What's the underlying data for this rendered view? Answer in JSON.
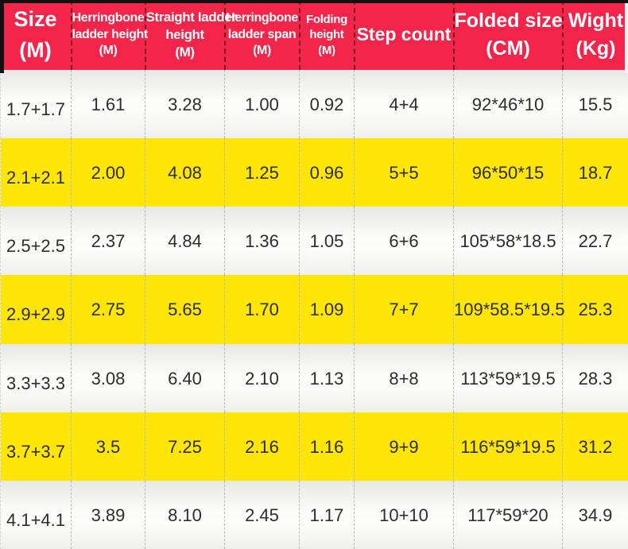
{
  "colors": {
    "header_bg": "#f4254a",
    "header_text": "#ffffff",
    "row_yellow": "#ffe606",
    "row_light": "#f1f1ef",
    "cell_text": "#2d2d2d"
  },
  "table": {
    "headers": [
      {
        "name": "size",
        "lines": [
          "Size",
          "(M)"
        ]
      },
      {
        "name": "herringbone-ladder-height",
        "lines": [
          "Herringbone",
          "ladder height",
          "(M)"
        ]
      },
      {
        "name": "straight-ladder-height",
        "lines": [
          "Straight ladder",
          "height",
          "(M)"
        ]
      },
      {
        "name": "herringbone-ladder-span",
        "lines": [
          "Herringbone",
          "ladder span",
          "(M)"
        ]
      },
      {
        "name": "folding-height",
        "lines": [
          "Folding",
          "height",
          "(M)"
        ]
      },
      {
        "name": "step-count",
        "lines": [
          "Step count"
        ]
      },
      {
        "name": "folded-size",
        "lines": [
          "Folded size",
          "(CM)"
        ]
      },
      {
        "name": "weight",
        "lines": [
          "Wight",
          "(Kg)"
        ]
      }
    ],
    "rows": [
      [
        "1.7+1.7",
        "1.61",
        "3.28",
        "1.00",
        "0.92",
        "4+4",
        "92*46*10",
        "15.5"
      ],
      [
        "2.1+2.1",
        "2.00",
        "4.08",
        "1.25",
        "0.96",
        "5+5",
        "96*50*15",
        "18.7"
      ],
      [
        "2.5+2.5",
        "2.37",
        "4.84",
        "1.36",
        "1.05",
        "6+6",
        "105*58*18.5",
        "22.7"
      ],
      [
        "2.9+2.9",
        "2.75",
        "5.65",
        "1.70",
        "1.09",
        "7+7",
        "109*58.5*19.5",
        "25.3"
      ],
      [
        "3.3+3.3",
        "3.08",
        "6.40",
        "2.10",
        "1.13",
        "8+8",
        "113*59*19.5",
        "28.3"
      ],
      [
        "3.7+3.7",
        "3.5",
        "7.25",
        "2.16",
        "1.16",
        "9+9",
        "116*59*19.5",
        "31.2"
      ],
      [
        "4.1+4.1",
        "3.89",
        "8.10",
        "2.45",
        "1.17",
        "10+10",
        "117*59*20",
        "34.9"
      ]
    ]
  }
}
